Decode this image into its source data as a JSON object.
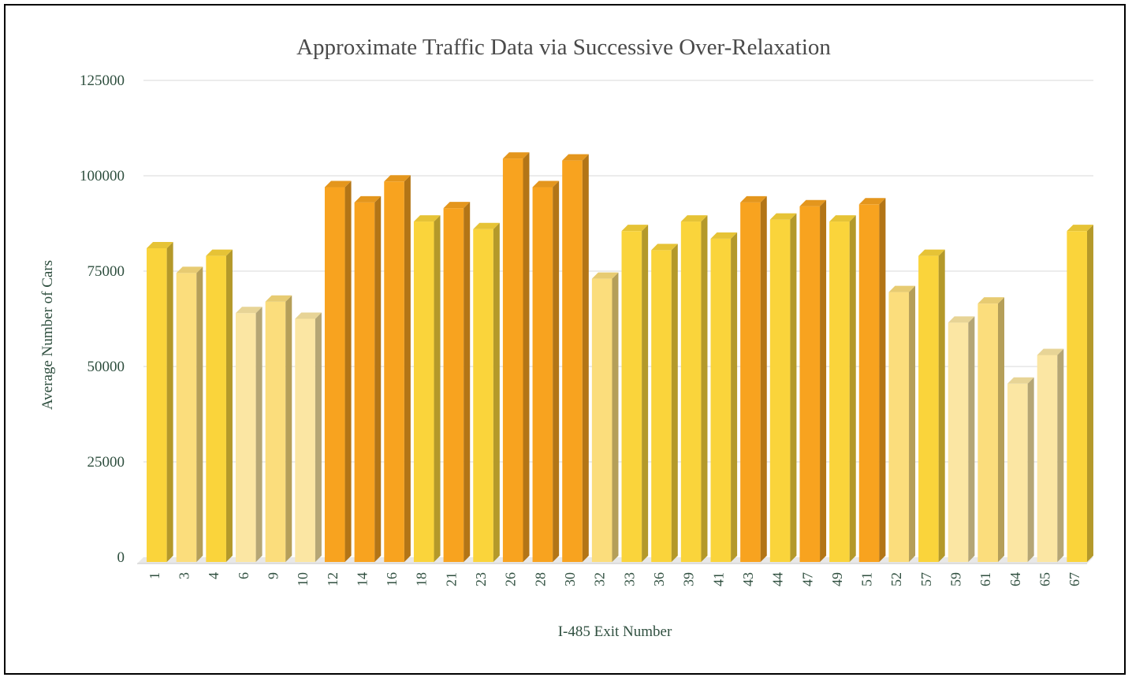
{
  "chart_data": {
    "type": "bar",
    "title": "Approximate Traffic Data via Successive Over-Relaxation",
    "xlabel": "I-485 Exit Number",
    "ylabel": "Average Number of Cars",
    "ylim": [
      0,
      125000
    ],
    "yticks": [
      "0",
      "25000",
      "50000",
      "75000",
      "100000",
      "125000"
    ],
    "grid": true,
    "categories": [
      "1",
      "3",
      "4",
      "6",
      "9",
      "10",
      "12",
      "14",
      "16",
      "18",
      "21",
      "23",
      "26",
      "28",
      "30",
      "32",
      "33",
      "36",
      "39",
      "41",
      "43",
      "44",
      "47",
      "49",
      "51",
      "52",
      "57",
      "59",
      "61",
      "64",
      "65",
      "67"
    ],
    "values": [
      81000,
      74500,
      79000,
      64000,
      67000,
      62500,
      97000,
      93000,
      98500,
      88000,
      91500,
      86000,
      104500,
      97000,
      104000,
      73000,
      85500,
      80500,
      88000,
      83500,
      93000,
      88500,
      92000,
      88000,
      92500,
      69500,
      79000,
      61500,
      66500,
      45500,
      53000,
      85500
    ],
    "colors": {
      "high": "#f8a31f",
      "mid": "#fad43b",
      "low_mid": "#fbdd7c",
      "low": "#fbe6a3",
      "grid": "#d9d9d9",
      "text": "#2f4f3f"
    }
  }
}
